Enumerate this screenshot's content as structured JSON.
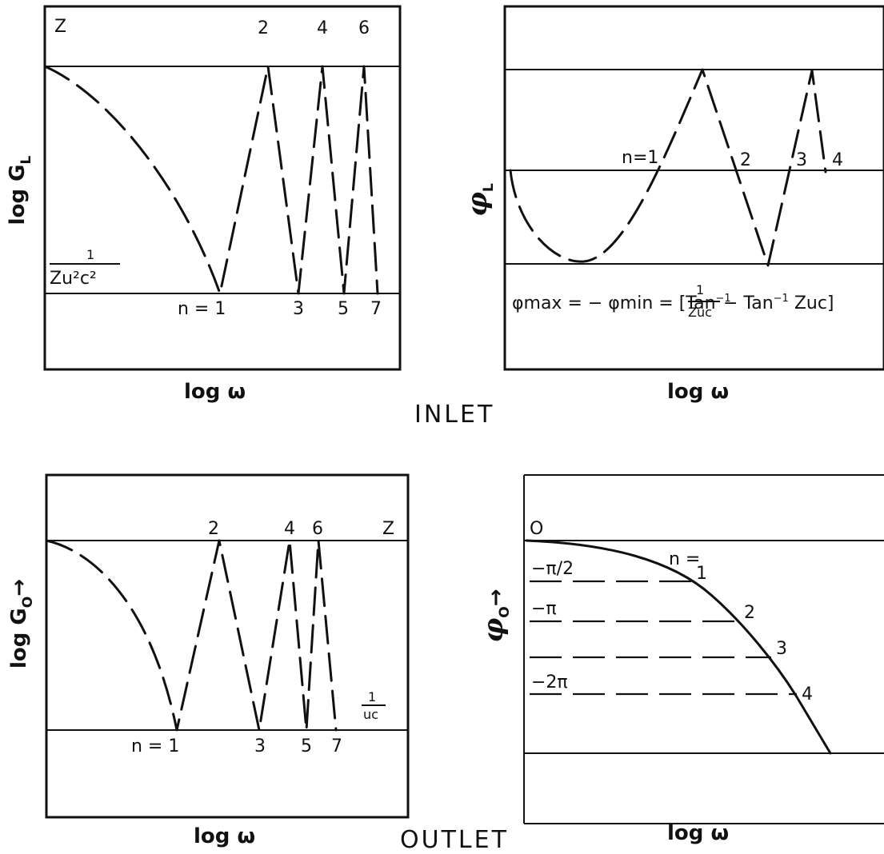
{
  "inlet": {
    "section_label": "INLET",
    "gain": {
      "ylabel": "log G",
      "ylabel_sub": "L",
      "xlabel": "log ω",
      "top_label": "Z",
      "bottom_label_num": "1",
      "bottom_label_den": "Zu²c²",
      "peak_labels": [
        "2",
        "4",
        "6"
      ],
      "trough_labels": [
        "n = 1",
        "3",
        "5",
        "7"
      ]
    },
    "phase": {
      "ylabel": "φ",
      "ylabel_sub": "L",
      "xlabel": "log ω",
      "point_labels": [
        "n=1",
        "2",
        "3",
        "4"
      ],
      "formula_left": "φmax = − φmin = [Tan",
      "formula_mid_num": "1",
      "formula_mid_den": "Zuc",
      "formula_right": "− Tan",
      "formula_tail": " Zuc]",
      "sup": "−1"
    }
  },
  "outlet": {
    "section_label": "OUTLET",
    "gain": {
      "ylabel": "log G",
      "ylabel_sub": "O",
      "ylabel_arrow": "→",
      "xlabel": "log ω",
      "top_label": "Z",
      "right_label_num": "1",
      "right_label_den": "uc",
      "peak_labels": [
        "2",
        "4",
        "6"
      ],
      "trough_labels": [
        "n = 1",
        "3",
        "5",
        "7"
      ]
    },
    "phase": {
      "ylabel": "φ",
      "ylabel_sub": "O",
      "ylabel_arrow": "→",
      "xlabel": "log ω",
      "zero_label": "O",
      "n_label": "n =",
      "level_labels": [
        "−π/2",
        "−π",
        "−2π"
      ],
      "point_labels": [
        "1",
        "2",
        "3",
        "4"
      ]
    }
  }
}
